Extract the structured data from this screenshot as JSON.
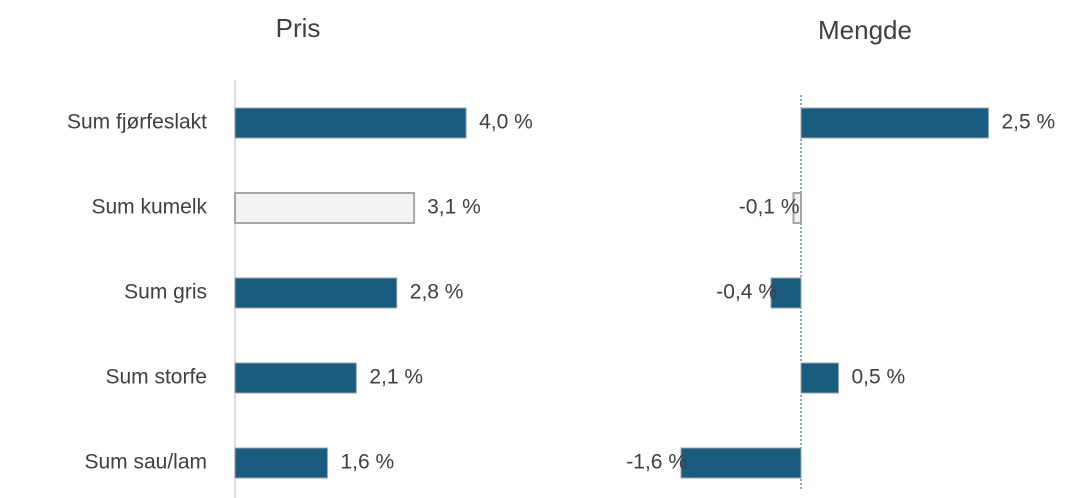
{
  "chart_data": [
    {
      "type": "barh",
      "title": "Pris",
      "categories": [
        "Sum fjørfeslakt",
        "Sum kumelk",
        "Sum gris",
        "Sum storfe",
        "Sum sau/lam"
      ],
      "values": [
        4.0,
        3.1,
        2.8,
        2.1,
        1.6
      ],
      "value_labels": [
        "4,0 %",
        "3,1 %",
        "2,8 %",
        "2,1 %",
        "1,6 %"
      ],
      "colors": [
        "#1a5b80",
        "#f2f2f2",
        "#1a5b80",
        "#1a5b80",
        "#1a5b80"
      ],
      "xlim": [
        0,
        4.5
      ]
    },
    {
      "type": "barh",
      "title": "Mengde",
      "values": [
        2.5,
        -0.1,
        -0.4,
        0.5,
        -1.6
      ],
      "value_labels": [
        "2,5 %",
        "-0,1 %",
        "-0,4 %",
        "0,5 %",
        "-1,6 %"
      ],
      "colors": [
        "#1a5b80",
        "#f2f2f2",
        "#1a5b80",
        "#1a5b80",
        "#1a5b80"
      ],
      "xlim": [
        -1.7,
        2.8
      ]
    }
  ]
}
